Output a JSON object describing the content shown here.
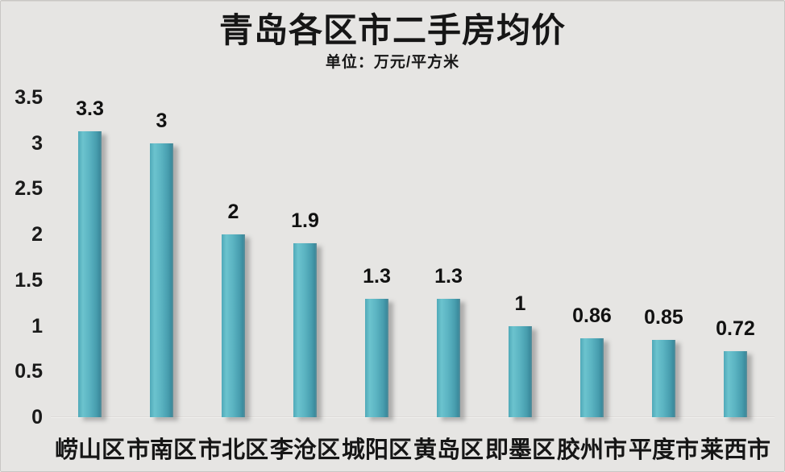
{
  "title": "青岛各区市二手房均价",
  "subtitle": "单位：万元/平方米",
  "colors": {
    "background": "#e6e5e3",
    "title_text": "#161616",
    "bar_teal_light": "#6cc3ce",
    "bar_teal_mid": "#55afbe",
    "bar_teal_dark": "#3c8b9d",
    "baseline": "#f1f0ee"
  },
  "chart_data": {
    "type": "bar",
    "title": "青岛各区市二手房均价",
    "subtitle": "单位：万元/平方米",
    "categories": [
      "崂山区",
      "市南区",
      "市北区",
      "李沧区",
      "城阳区",
      "黄岛区",
      "即墨区",
      "胶州市",
      "平度市",
      "莱西市"
    ],
    "values": [
      3.3,
      3,
      2,
      1.9,
      1.3,
      1.3,
      1,
      0.86,
      0.85,
      0.72
    ],
    "value_labels": [
      "3.3",
      "3",
      "2",
      "1.9",
      "1.3",
      "1.3",
      "1",
      "0.86",
      "0.85",
      "0.72"
    ],
    "xlabel": "",
    "ylabel": "",
    "ylim": [
      0,
      3.5
    ],
    "ytick_interval": 0.5,
    "yticks": [
      "3.5",
      "3",
      "2.5",
      "2",
      "1.5",
      "1",
      "0.5",
      "0"
    ],
    "grid": false,
    "legend": false,
    "data_labels": true,
    "bar_color": "teal-gradient",
    "orientation": "vertical"
  }
}
